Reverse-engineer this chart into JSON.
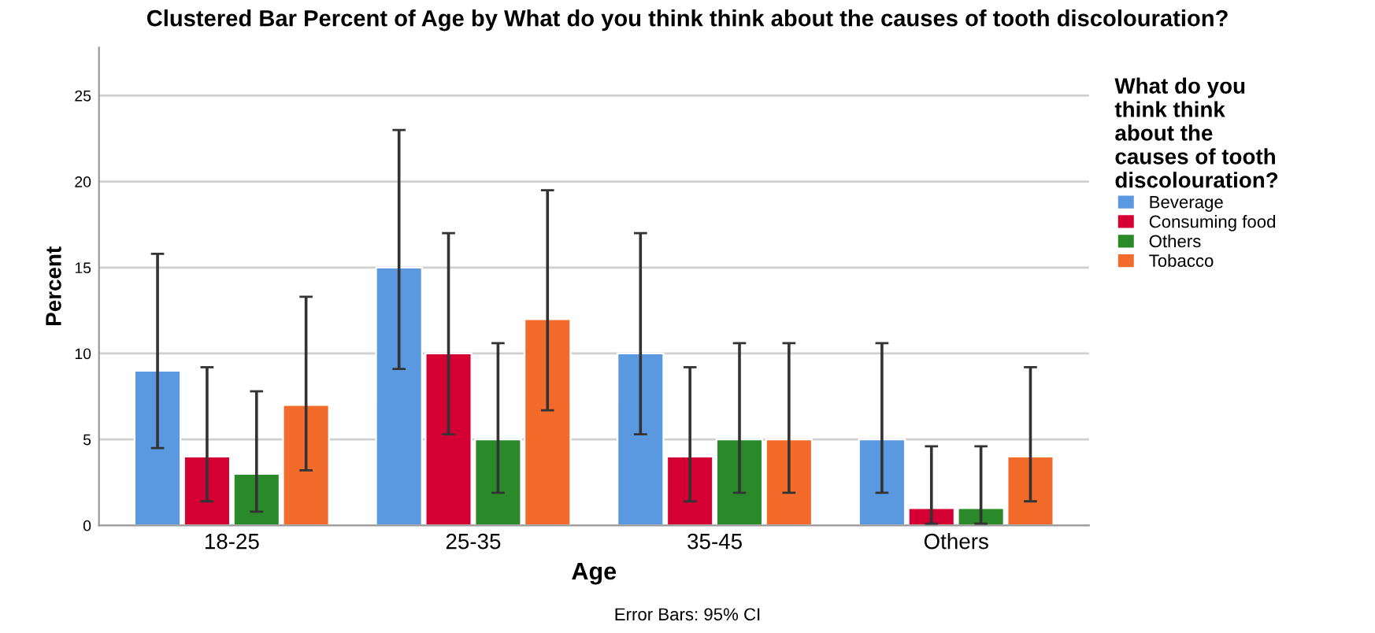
{
  "chart_data": {
    "type": "bar",
    "title": "Clustered Bar Percent of Age by What do you think think about the causes of tooth discolouration?",
    "xlabel": "Age",
    "ylabel": "Percent",
    "legend_title": "What do you\nthink think\nabout the\ncauses of tooth\ndiscolouration?",
    "categories": [
      "18-25",
      "25-35",
      "35-45",
      "Others"
    ],
    "series": [
      {
        "name": "Beverage",
        "color": "#5a98e0",
        "values": [
          9,
          15,
          10,
          5
        ],
        "errors": [
          [
            4.5,
            15.8
          ],
          [
            9.1,
            23.0
          ],
          [
            5.3,
            17.0
          ],
          [
            1.9,
            10.6
          ]
        ]
      },
      {
        "name": "Consuming food",
        "color": "#d40034",
        "values": [
          4,
          10,
          4,
          1
        ],
        "errors": [
          [
            1.4,
            9.2
          ],
          [
            5.3,
            17.0
          ],
          [
            1.4,
            9.2
          ],
          [
            0.1,
            4.6
          ]
        ]
      },
      {
        "name": "Others",
        "color": "#2a8a2a",
        "values": [
          3,
          5,
          5,
          1
        ],
        "errors": [
          [
            0.8,
            7.8
          ],
          [
            1.9,
            10.6
          ],
          [
            1.9,
            10.6
          ],
          [
            0.1,
            4.6
          ]
        ]
      },
      {
        "name": "Tobacco",
        "color": "#f26b2b",
        "values": [
          7,
          12,
          5,
          4
        ],
        "errors": [
          [
            3.2,
            13.3
          ],
          [
            6.7,
            19.5
          ],
          [
            1.9,
            10.6
          ],
          [
            1.4,
            9.2
          ]
        ]
      }
    ],
    "ylim": [
      0,
      27.8
    ],
    "yticks": [
      0,
      5,
      10,
      15,
      20,
      25
    ],
    "grid": "y",
    "legend": "right",
    "annotations": [
      "Error Bars: 95% CI"
    ]
  }
}
